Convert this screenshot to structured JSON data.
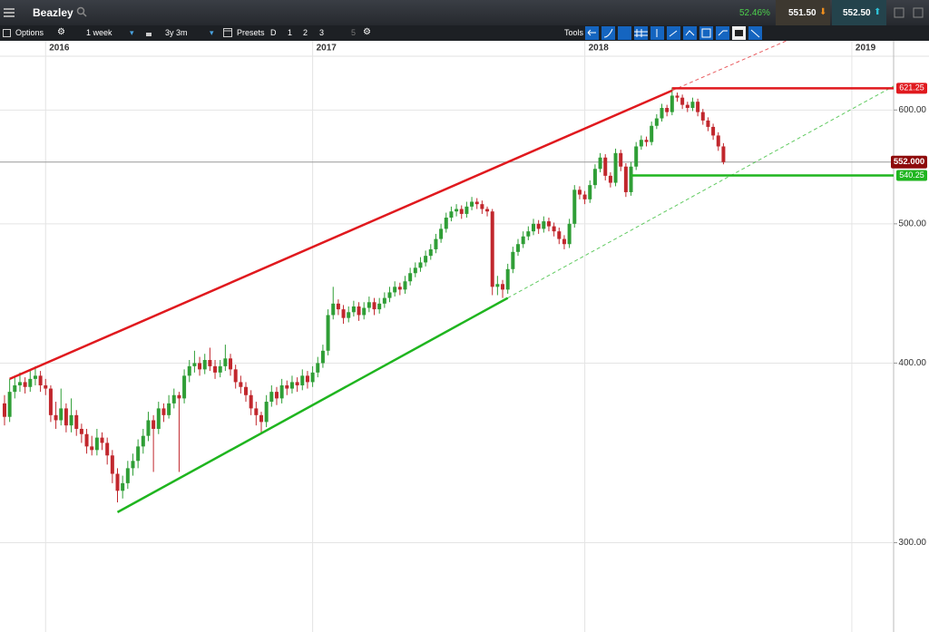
{
  "header": {
    "instrument": "Beazley",
    "change": "52.46%",
    "sell": "551.50",
    "buy": "552.50"
  },
  "toolbar": {
    "options": "Options",
    "interval": "1 week",
    "range": "3y 3m",
    "presets": "Presets",
    "preset_buttons": [
      "D",
      "1",
      "2",
      "3",
      "5"
    ],
    "tools": "Tools"
  },
  "chart_data": {
    "type": "candlestick",
    "log_scale": true,
    "grid": true,
    "up_color": "#2f9e36",
    "down_color": "#c1272d",
    "xlim": [
      -0.88,
      173.14
    ],
    "ylim": [
      260,
      654
    ],
    "xticks": [
      {
        "value": 8,
        "label": "2016"
      },
      {
        "value": 60,
        "label": "2017"
      },
      {
        "value": 113,
        "label": "2018"
      },
      {
        "value": 165,
        "label": "2019"
      }
    ],
    "yticks": [
      {
        "value": 300,
        "label": "300.00"
      },
      {
        "value": 400,
        "label": "400.00"
      },
      {
        "value": 500,
        "label": "500.00"
      },
      {
        "value": 600,
        "label": "600.00"
      }
    ],
    "candles": [
      [
        375,
        380,
        362,
        367
      ],
      [
        367,
        390,
        364,
        382
      ],
      [
        382,
        392,
        378,
        386
      ],
      [
        386,
        394,
        382,
        388
      ],
      [
        388,
        391,
        381,
        385
      ],
      [
        385,
        396,
        382,
        390
      ],
      [
        390,
        398,
        386,
        392
      ],
      [
        392,
        395,
        382,
        386
      ],
      [
        386,
        390,
        380,
        384
      ],
      [
        384,
        386,
        364,
        368
      ],
      [
        368,
        376,
        360,
        365
      ],
      [
        365,
        384,
        362,
        372
      ],
      [
        372,
        375,
        358,
        362
      ],
      [
        362,
        378,
        358,
        368
      ],
      [
        368,
        371,
        356,
        360
      ],
      [
        360,
        363,
        352,
        357
      ],
      [
        357,
        360,
        346,
        350
      ],
      [
        350,
        356,
        345,
        348
      ],
      [
        348,
        360,
        345,
        355
      ],
      [
        355,
        358,
        348,
        352
      ],
      [
        352,
        355,
        340,
        345
      ],
      [
        345,
        348,
        330,
        335
      ],
      [
        335,
        338,
        320,
        326
      ],
      [
        326,
        334,
        322,
        330
      ],
      [
        330,
        342,
        327,
        338
      ],
      [
        338,
        346,
        334,
        342
      ],
      [
        342,
        354,
        338,
        350
      ],
      [
        350,
        360,
        346,
        356
      ],
      [
        356,
        370,
        353,
        365
      ],
      [
        365,
        368,
        336,
        360
      ],
      [
        360,
        376,
        357,
        372
      ],
      [
        372,
        375,
        364,
        368
      ],
      [
        368,
        380,
        366,
        375
      ],
      [
        375,
        384,
        372,
        380
      ],
      [
        380,
        382,
        336,
        378
      ],
      [
        378,
        396,
        375,
        392
      ],
      [
        392,
        402,
        388,
        398
      ],
      [
        398,
        408,
        394,
        400
      ],
      [
        400,
        404,
        392,
        396
      ],
      [
        396,
        406,
        393,
        402
      ],
      [
        402,
        410,
        395,
        398
      ],
      [
        398,
        402,
        390,
        394
      ],
      [
        394,
        402,
        391,
        398
      ],
      [
        398,
        412,
        395,
        403
      ],
      [
        403,
        406,
        392,
        396
      ],
      [
        396,
        399,
        384,
        388
      ],
      [
        388,
        392,
        381,
        385
      ],
      [
        385,
        388,
        376,
        380
      ],
      [
        380,
        383,
        368,
        372
      ],
      [
        372,
        376,
        362,
        368
      ],
      [
        368,
        370,
        358,
        364
      ],
      [
        364,
        380,
        361,
        376
      ],
      [
        376,
        386,
        373,
        382
      ],
      [
        382,
        385,
        374,
        378
      ],
      [
        378,
        390,
        375,
        386
      ],
      [
        386,
        389,
        380,
        384
      ],
      [
        384,
        392,
        381,
        388
      ],
      [
        388,
        391,
        382,
        386
      ],
      [
        386,
        396,
        383,
        392
      ],
      [
        392,
        395,
        384,
        388
      ],
      [
        388,
        398,
        385,
        394
      ],
      [
        394,
        404,
        391,
        400
      ],
      [
        400,
        412,
        397,
        408
      ],
      [
        408,
        436,
        405,
        432
      ],
      [
        432,
        452,
        429,
        440
      ],
      [
        440,
        443,
        432,
        436
      ],
      [
        436,
        439,
        426,
        430
      ],
      [
        430,
        438,
        427,
        434
      ],
      [
        434,
        442,
        431,
        438
      ],
      [
        438,
        441,
        428,
        432
      ],
      [
        432,
        441,
        429,
        437
      ],
      [
        437,
        445,
        434,
        441
      ],
      [
        441,
        444,
        432,
        436
      ],
      [
        436,
        444,
        433,
        440
      ],
      [
        440,
        448,
        437,
        444
      ],
      [
        444,
        452,
        441,
        448
      ],
      [
        448,
        456,
        445,
        452
      ],
      [
        452,
        455,
        446,
        450
      ],
      [
        450,
        460,
        447,
        456
      ],
      [
        456,
        466,
        453,
        462
      ],
      [
        462,
        470,
        459,
        466
      ],
      [
        466,
        474,
        463,
        470
      ],
      [
        470,
        479,
        467,
        475
      ],
      [
        475,
        484,
        472,
        480
      ],
      [
        480,
        492,
        477,
        488
      ],
      [
        488,
        500,
        485,
        496
      ],
      [
        496,
        509,
        493,
        505
      ],
      [
        505,
        514,
        502,
        510
      ],
      [
        510,
        516,
        506,
        512
      ],
      [
        512,
        515,
        504,
        508
      ],
      [
        508,
        518,
        505,
        514
      ],
      [
        514,
        522,
        511,
        518
      ],
      [
        518,
        521,
        512,
        516
      ],
      [
        516,
        519,
        508,
        512
      ],
      [
        512,
        514,
        506,
        510
      ],
      [
        510,
        512,
        446,
        452
      ],
      [
        452,
        460,
        446,
        454
      ],
      [
        454,
        457,
        444,
        450
      ],
      [
        450,
        469,
        447,
        465
      ],
      [
        465,
        482,
        462,
        478
      ],
      [
        478,
        488,
        475,
        484
      ],
      [
        484,
        494,
        481,
        490
      ],
      [
        490,
        498,
        487,
        494
      ],
      [
        494,
        504,
        491,
        500
      ],
      [
        500,
        503,
        492,
        496
      ],
      [
        496,
        506,
        493,
        502
      ],
      [
        502,
        505,
        494,
        498
      ],
      [
        498,
        501,
        490,
        494
      ],
      [
        494,
        497,
        484,
        488
      ],
      [
        488,
        491,
        480,
        484
      ],
      [
        484,
        504,
        481,
        500
      ],
      [
        500,
        532,
        497,
        528
      ],
      [
        528,
        531,
        520,
        524
      ],
      [
        524,
        527,
        516,
        520
      ],
      [
        520,
        536,
        517,
        532
      ],
      [
        532,
        550,
        529,
        546
      ],
      [
        546,
        560,
        543,
        556
      ],
      [
        556,
        559,
        536,
        540
      ],
      [
        540,
        543,
        530,
        534
      ],
      [
        534,
        564,
        531,
        560
      ],
      [
        560,
        563,
        544,
        548
      ],
      [
        548,
        551,
        522,
        526
      ],
      [
        526,
        552,
        523,
        548
      ],
      [
        548,
        570,
        545,
        566
      ],
      [
        566,
        576,
        563,
        572
      ],
      [
        572,
        575,
        566,
        570
      ],
      [
        570,
        589,
        567,
        585
      ],
      [
        585,
        596,
        582,
        592
      ],
      [
        592,
        606,
        589,
        602
      ],
      [
        602,
        605,
        594,
        598
      ],
      [
        598,
        622,
        595,
        614
      ],
      [
        614,
        617,
        608,
        612
      ],
      [
        612,
        615,
        601,
        605
      ],
      [
        605,
        608,
        598,
        602
      ],
      [
        602,
        612,
        599,
        608
      ],
      [
        608,
        611,
        594,
        598
      ],
      [
        598,
        601,
        586,
        590
      ],
      [
        590,
        593,
        580,
        584
      ],
      [
        584,
        587,
        572,
        576
      ],
      [
        576,
        579,
        562,
        566
      ],
      [
        566,
        569,
        550,
        552
      ]
    ],
    "trendlines": [
      {
        "color": "#e0191e",
        "start": [
          1,
          390
        ],
        "end": [
          130,
          619
        ]
      },
      {
        "color": "#1fb51f",
        "start": [
          22,
          315
        ],
        "end": [
          98,
          444
        ]
      }
    ],
    "levels": [
      {
        "value": 621.25,
        "label": "621.25",
        "color": "#e0191e",
        "from": 130
      },
      {
        "value": 540.25,
        "label": "540.25",
        "color": "#1fb51f",
        "from": 122
      }
    ],
    "last_price": {
      "value": 552,
      "label": "552.000",
      "color": "#8e0b0b"
    }
  }
}
